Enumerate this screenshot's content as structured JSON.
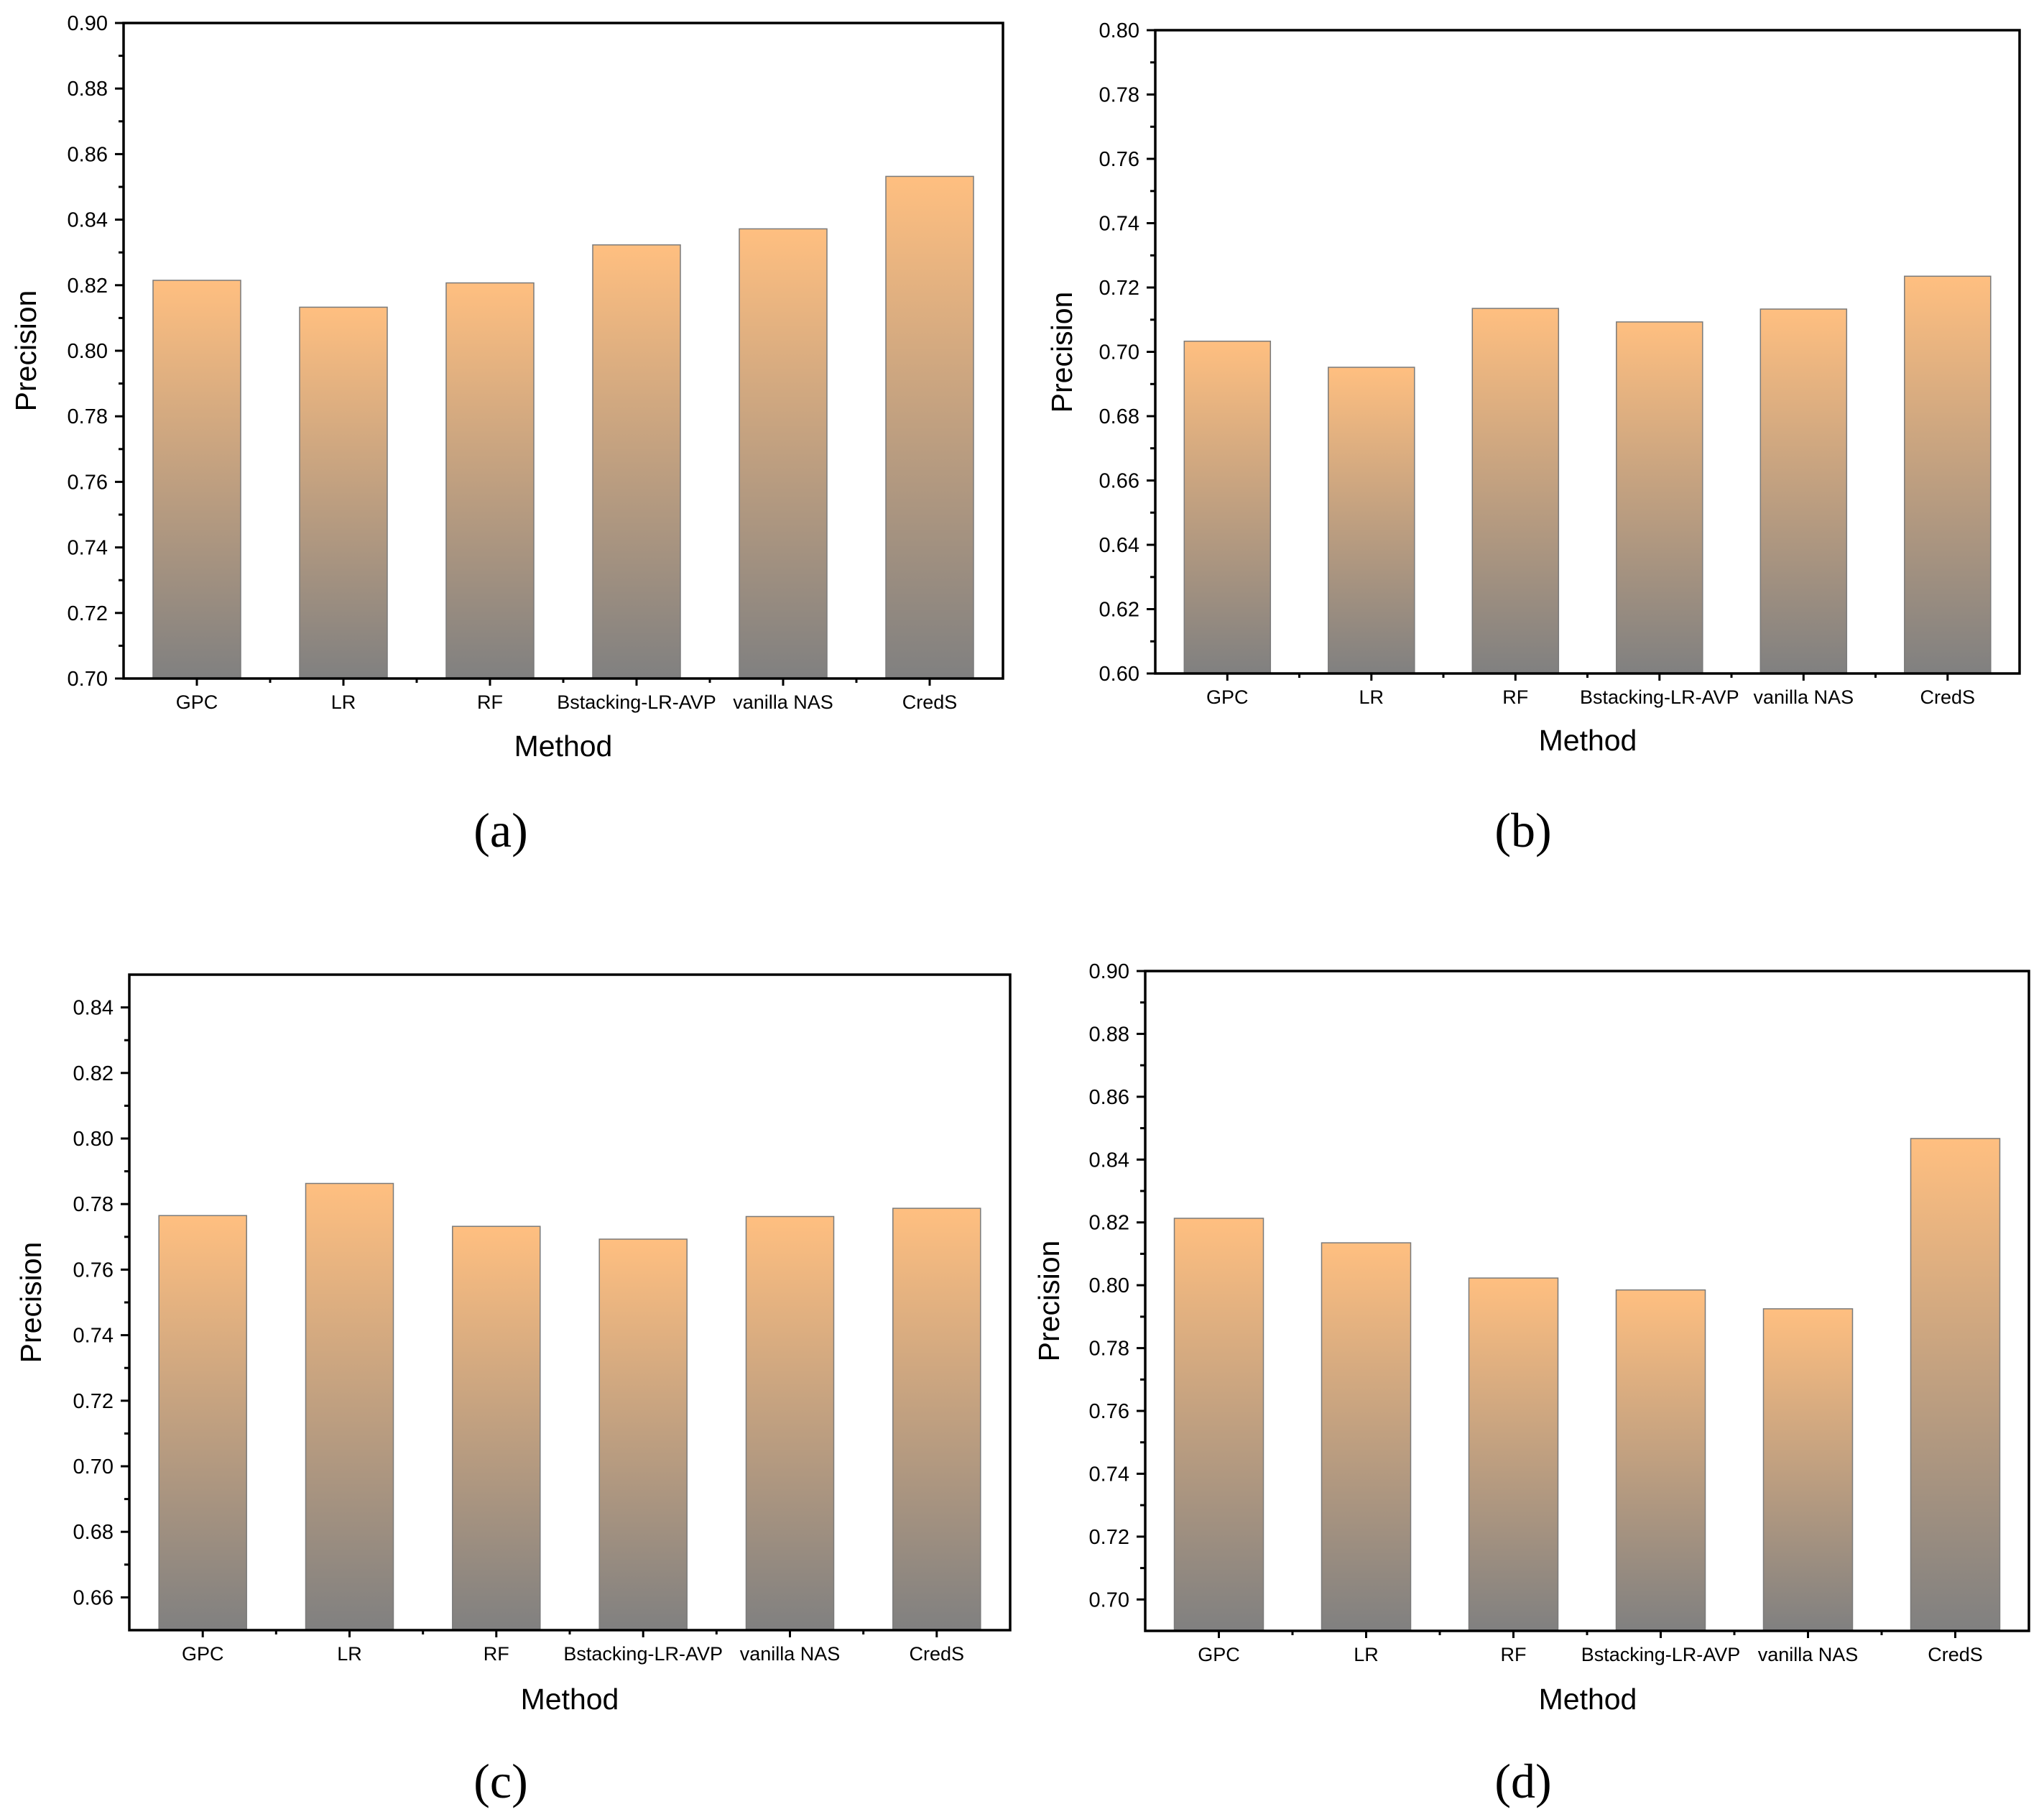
{
  "colors": {
    "bar_top": "#ffbf80",
    "bar_bottom": "#808080",
    "bar_edge": "#7a7a7a",
    "axis": "#000000"
  },
  "chart_data": [
    {
      "panel": "(a)",
      "type": "bar",
      "categories": [
        "GPC",
        "LR",
        "RF",
        "Bstacking-LR-AVP",
        "vanilla NAS",
        "CredS"
      ],
      "values": [
        0.8215,
        0.8133,
        0.8207,
        0.8323,
        0.8372,
        0.8532
      ],
      "xlabel": "Method",
      "ylabel": "Precision",
      "ylim": [
        0.7,
        0.9
      ],
      "yticks": [
        "0.70",
        "0.72",
        "0.74",
        "0.76",
        "0.78",
        "0.80",
        "0.82",
        "0.84",
        "0.86",
        "0.88",
        "0.90"
      ]
    },
    {
      "panel": "(b)",
      "type": "bar",
      "categories": [
        "GPC",
        "LR",
        "RF",
        "Bstacking-LR-AVP",
        "vanilla NAS",
        "CredS"
      ],
      "values": [
        0.7033,
        0.6952,
        0.7135,
        0.7093,
        0.7133,
        0.7235
      ],
      "xlabel": "Method",
      "ylabel": "Precision",
      "ylim": [
        0.6,
        0.8
      ],
      "yticks": [
        "0.60",
        "0.62",
        "0.64",
        "0.66",
        "0.68",
        "0.70",
        "0.72",
        "0.74",
        "0.76",
        "0.78",
        "0.80"
      ]
    },
    {
      "panel": "(c)",
      "type": "bar",
      "categories": [
        "GPC",
        "LR",
        "RF",
        "Bstacking-LR-AVP",
        "vanilla NAS",
        "CredS"
      ],
      "values": [
        0.7765,
        0.7863,
        0.7732,
        0.7693,
        0.7762,
        0.7787
      ],
      "xlabel": "Method",
      "ylabel": "Precision",
      "ylim": [
        0.65,
        0.85
      ],
      "yticks": [
        "0.66",
        "0.68",
        "0.70",
        "0.72",
        "0.74",
        "0.76",
        "0.78",
        "0.80",
        "0.82",
        "0.84"
      ]
    },
    {
      "panel": "(d)",
      "type": "bar",
      "categories": [
        "GPC",
        "LR",
        "RF",
        "Bstacking-LR-AVP",
        "vanilla NAS",
        "CredS"
      ],
      "values": [
        0.8213,
        0.8135,
        0.8023,
        0.7985,
        0.7925,
        0.8467
      ],
      "xlabel": "Method",
      "ylabel": "Precision",
      "ylim": [
        0.69,
        0.9
      ],
      "yticks": [
        "0.70",
        "0.72",
        "0.74",
        "0.76",
        "0.78",
        "0.80",
        "0.82",
        "0.84",
        "0.86",
        "0.88",
        "0.90"
      ]
    }
  ]
}
